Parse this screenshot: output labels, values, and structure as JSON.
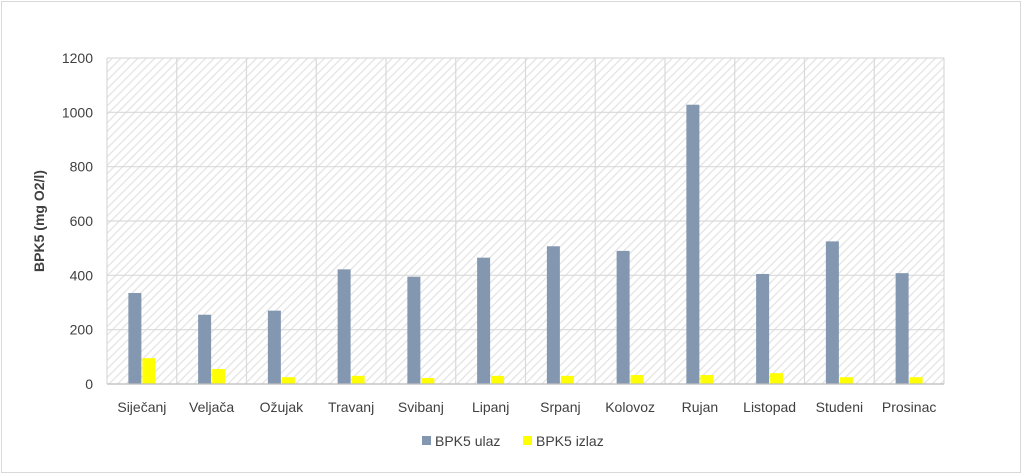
{
  "chart_data": {
    "type": "bar",
    "title": "",
    "xlabel": "",
    "ylabel": "BPK5 (mg O2/l)",
    "ylim": [
      0,
      1200
    ],
    "yticks": [
      0,
      200,
      400,
      600,
      800,
      1000,
      1200
    ],
    "categories": [
      "Siječanj",
      "Veljača",
      "Ožujak",
      "Travanj",
      "Svibanj",
      "Lipanj",
      "Srpanj",
      "Kolovoz",
      "Rujan",
      "Listopad",
      "Studeni",
      "Prosinac"
    ],
    "series": [
      {
        "name": "BPK5 ulaz",
        "color": "#8497b0",
        "values": [
          335,
          255,
          270,
          422,
          395,
          465,
          507,
          490,
          1028,
          405,
          525,
          408
        ]
      },
      {
        "name": "BPK5 izlaz",
        "color": "#ffff00",
        "values": [
          95,
          55,
          25,
          30,
          22,
          30,
          30,
          33,
          33,
          40,
          25,
          25
        ]
      }
    ],
    "grid": true,
    "plot_background": "hatched",
    "legend_position": "bottom"
  }
}
